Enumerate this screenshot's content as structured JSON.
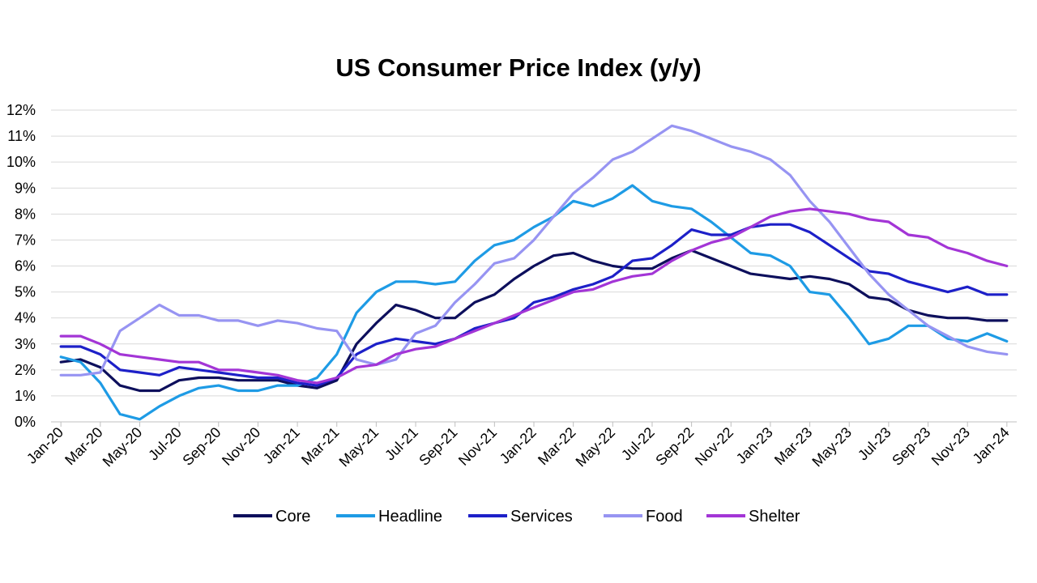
{
  "chart_data": {
    "type": "line",
    "title": "US Consumer Price Index (y/y)",
    "xlabel": "",
    "ylabel": "",
    "ylim": [
      0,
      12
    ],
    "y_ticks": [
      "0%",
      "1%",
      "2%",
      "3%",
      "4%",
      "5%",
      "6%",
      "7%",
      "8%",
      "9%",
      "10%",
      "11%",
      "12%"
    ],
    "x_tick_labels": [
      "Jan-20",
      "Mar-20",
      "May-20",
      "Jul-20",
      "Sep-20",
      "Nov-20",
      "Jan-21",
      "Mar-21",
      "May-21",
      "Jul-21",
      "Sep-21",
      "Nov-21",
      "Jan-22",
      "Mar-22",
      "May-22",
      "Jul-22",
      "Sep-22",
      "Nov-22",
      "Jan-23",
      "Mar-23",
      "May-23",
      "Jul-23",
      "Sep-23",
      "Nov-23",
      "Jan-24"
    ],
    "x_start": "Jan-20",
    "x_end": "Jan-24",
    "grid": "horizontal",
    "legend_position": "bottom",
    "series": [
      {
        "name": "Core",
        "color": "#0d0f5c",
        "values": [
          2.3,
          2.4,
          2.1,
          1.4,
          1.2,
          1.2,
          1.6,
          1.7,
          1.7,
          1.6,
          1.6,
          1.6,
          1.4,
          1.3,
          1.6,
          3.0,
          3.8,
          4.5,
          4.3,
          4.0,
          4.0,
          4.6,
          4.9,
          5.5,
          6.0,
          6.4,
          6.5,
          6.2,
          6.0,
          5.9,
          5.9,
          6.3,
          6.6,
          6.3,
          6.0,
          5.7,
          5.6,
          5.5,
          5.6,
          5.5,
          5.3,
          4.8,
          4.7,
          4.3,
          4.1,
          4.0,
          4.0,
          3.9,
          3.9
        ]
      },
      {
        "name": "Headline",
        "color": "#1e9be5",
        "values": [
          2.5,
          2.3,
          1.5,
          0.3,
          0.1,
          0.6,
          1.0,
          1.3,
          1.4,
          1.2,
          1.2,
          1.4,
          1.4,
          1.7,
          2.6,
          4.2,
          5.0,
          5.4,
          5.4,
          5.3,
          5.4,
          6.2,
          6.8,
          7.0,
          7.5,
          7.9,
          8.5,
          8.3,
          8.6,
          9.1,
          8.5,
          8.3,
          8.2,
          7.7,
          7.1,
          6.5,
          6.4,
          6.0,
          5.0,
          4.9,
          4.0,
          3.0,
          3.2,
          3.7,
          3.7,
          3.2,
          3.1,
          3.4,
          3.1
        ]
      },
      {
        "name": "Services",
        "color": "#1d20c8",
        "values": [
          2.9,
          2.9,
          2.6,
          2.0,
          1.9,
          1.8,
          2.1,
          2.0,
          1.9,
          1.8,
          1.7,
          1.7,
          1.5,
          1.4,
          1.7,
          2.6,
          3.0,
          3.2,
          3.1,
          3.0,
          3.2,
          3.6,
          3.8,
          4.0,
          4.6,
          4.8,
          5.1,
          5.3,
          5.6,
          6.2,
          6.3,
          6.8,
          7.4,
          7.2,
          7.2,
          7.5,
          7.6,
          7.6,
          7.3,
          6.8,
          6.3,
          5.8,
          5.7,
          5.4,
          5.2,
          5.0,
          5.2,
          4.9,
          4.9
        ]
      },
      {
        "name": "Food",
        "color": "#9794f2",
        "values": [
          1.8,
          1.8,
          1.9,
          3.5,
          4.0,
          4.5,
          4.1,
          4.1,
          3.9,
          3.9,
          3.7,
          3.9,
          3.8,
          3.6,
          3.5,
          2.4,
          2.2,
          2.4,
          3.4,
          3.7,
          4.6,
          5.3,
          6.1,
          6.3,
          7.0,
          7.9,
          8.8,
          9.4,
          10.1,
          10.4,
          10.9,
          11.4,
          11.2,
          10.9,
          10.6,
          10.4,
          10.1,
          9.5,
          8.5,
          7.7,
          6.7,
          5.7,
          4.9,
          4.3,
          3.7,
          3.3,
          2.9,
          2.7,
          2.6
        ]
      },
      {
        "name": "Shelter",
        "color": "#a335d6",
        "values": [
          3.3,
          3.3,
          3.0,
          2.6,
          2.5,
          2.4,
          2.3,
          2.3,
          2.0,
          2.0,
          1.9,
          1.8,
          1.6,
          1.5,
          1.7,
          2.1,
          2.2,
          2.6,
          2.8,
          2.9,
          3.2,
          3.5,
          3.8,
          4.1,
          4.4,
          4.7,
          5.0,
          5.1,
          5.4,
          5.6,
          5.7,
          6.2,
          6.6,
          6.9,
          7.1,
          7.5,
          7.9,
          8.1,
          8.2,
          8.1,
          8.0,
          7.8,
          7.7,
          7.2,
          7.1,
          6.7,
          6.5,
          6.2,
          6.0
        ]
      }
    ]
  }
}
